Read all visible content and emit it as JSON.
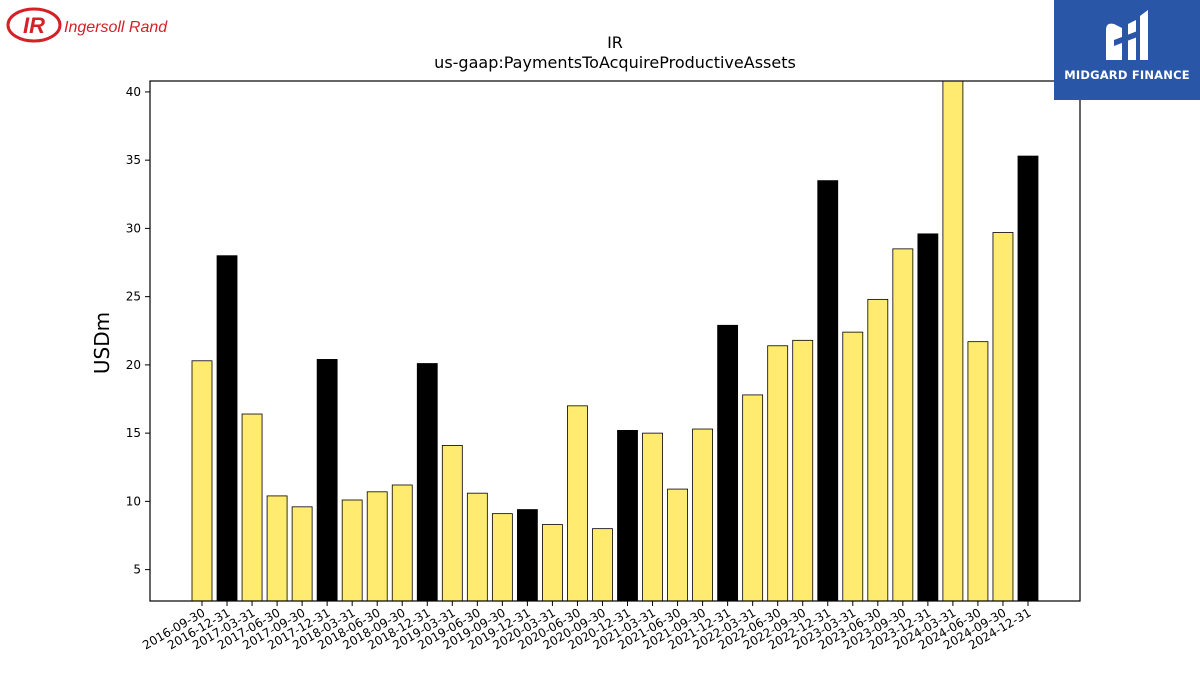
{
  "logos": {
    "company": {
      "text": "Ingersoll Rand",
      "mark": "IR",
      "color": "#d42128"
    },
    "publisher": {
      "text": "MIDGARD FINANCE",
      "color": "#2a56a8"
    }
  },
  "chart_data": {
    "type": "bar",
    "title": "IR",
    "subtitle": "us-gaap:PaymentsToAcquireProductiveAssets",
    "xlabel": "",
    "ylabel": "USDm",
    "ylim": [
      2.7,
      40.8
    ],
    "yticks": [
      5,
      10,
      15,
      20,
      25,
      30,
      35,
      40
    ],
    "grid": false,
    "legend": "none",
    "colors": {
      "quarter": "#ffeb70",
      "year_end": "#000000",
      "edge": "#000000"
    },
    "categories": [
      "2016-09-30",
      "2016-12-31",
      "2017-03-31",
      "2017-06-30",
      "2017-09-30",
      "2017-12-31",
      "2018-03-31",
      "2018-06-30",
      "2018-09-30",
      "2018-12-31",
      "2019-03-31",
      "2019-06-30",
      "2019-09-30",
      "2019-12-31",
      "2020-03-31",
      "2020-06-30",
      "2020-09-30",
      "2020-12-31",
      "2021-03-31",
      "2021-06-30",
      "2021-09-30",
      "2021-12-31",
      "2022-03-31",
      "2022-06-30",
      "2022-09-30",
      "2022-12-31",
      "2023-03-31",
      "2023-06-30",
      "2023-09-30",
      "2023-12-31",
      "2024-03-31",
      "2024-06-30",
      "2024-09-30",
      "2024-12-31"
    ],
    "values": [
      20.3,
      28.0,
      16.4,
      10.4,
      9.6,
      20.4,
      10.1,
      10.7,
      11.2,
      20.1,
      14.1,
      10.6,
      9.1,
      9.4,
      8.3,
      17.0,
      8.0,
      15.2,
      15.0,
      10.9,
      15.3,
      22.9,
      17.8,
      21.4,
      21.8,
      33.5,
      22.4,
      24.8,
      28.5,
      29.6,
      40.8,
      21.7,
      29.7,
      35.3
    ],
    "year_end": [
      false,
      true,
      false,
      false,
      false,
      true,
      false,
      false,
      false,
      true,
      false,
      false,
      false,
      true,
      false,
      false,
      false,
      true,
      false,
      false,
      false,
      true,
      false,
      false,
      false,
      true,
      false,
      false,
      false,
      true,
      false,
      false,
      false,
      true
    ]
  }
}
